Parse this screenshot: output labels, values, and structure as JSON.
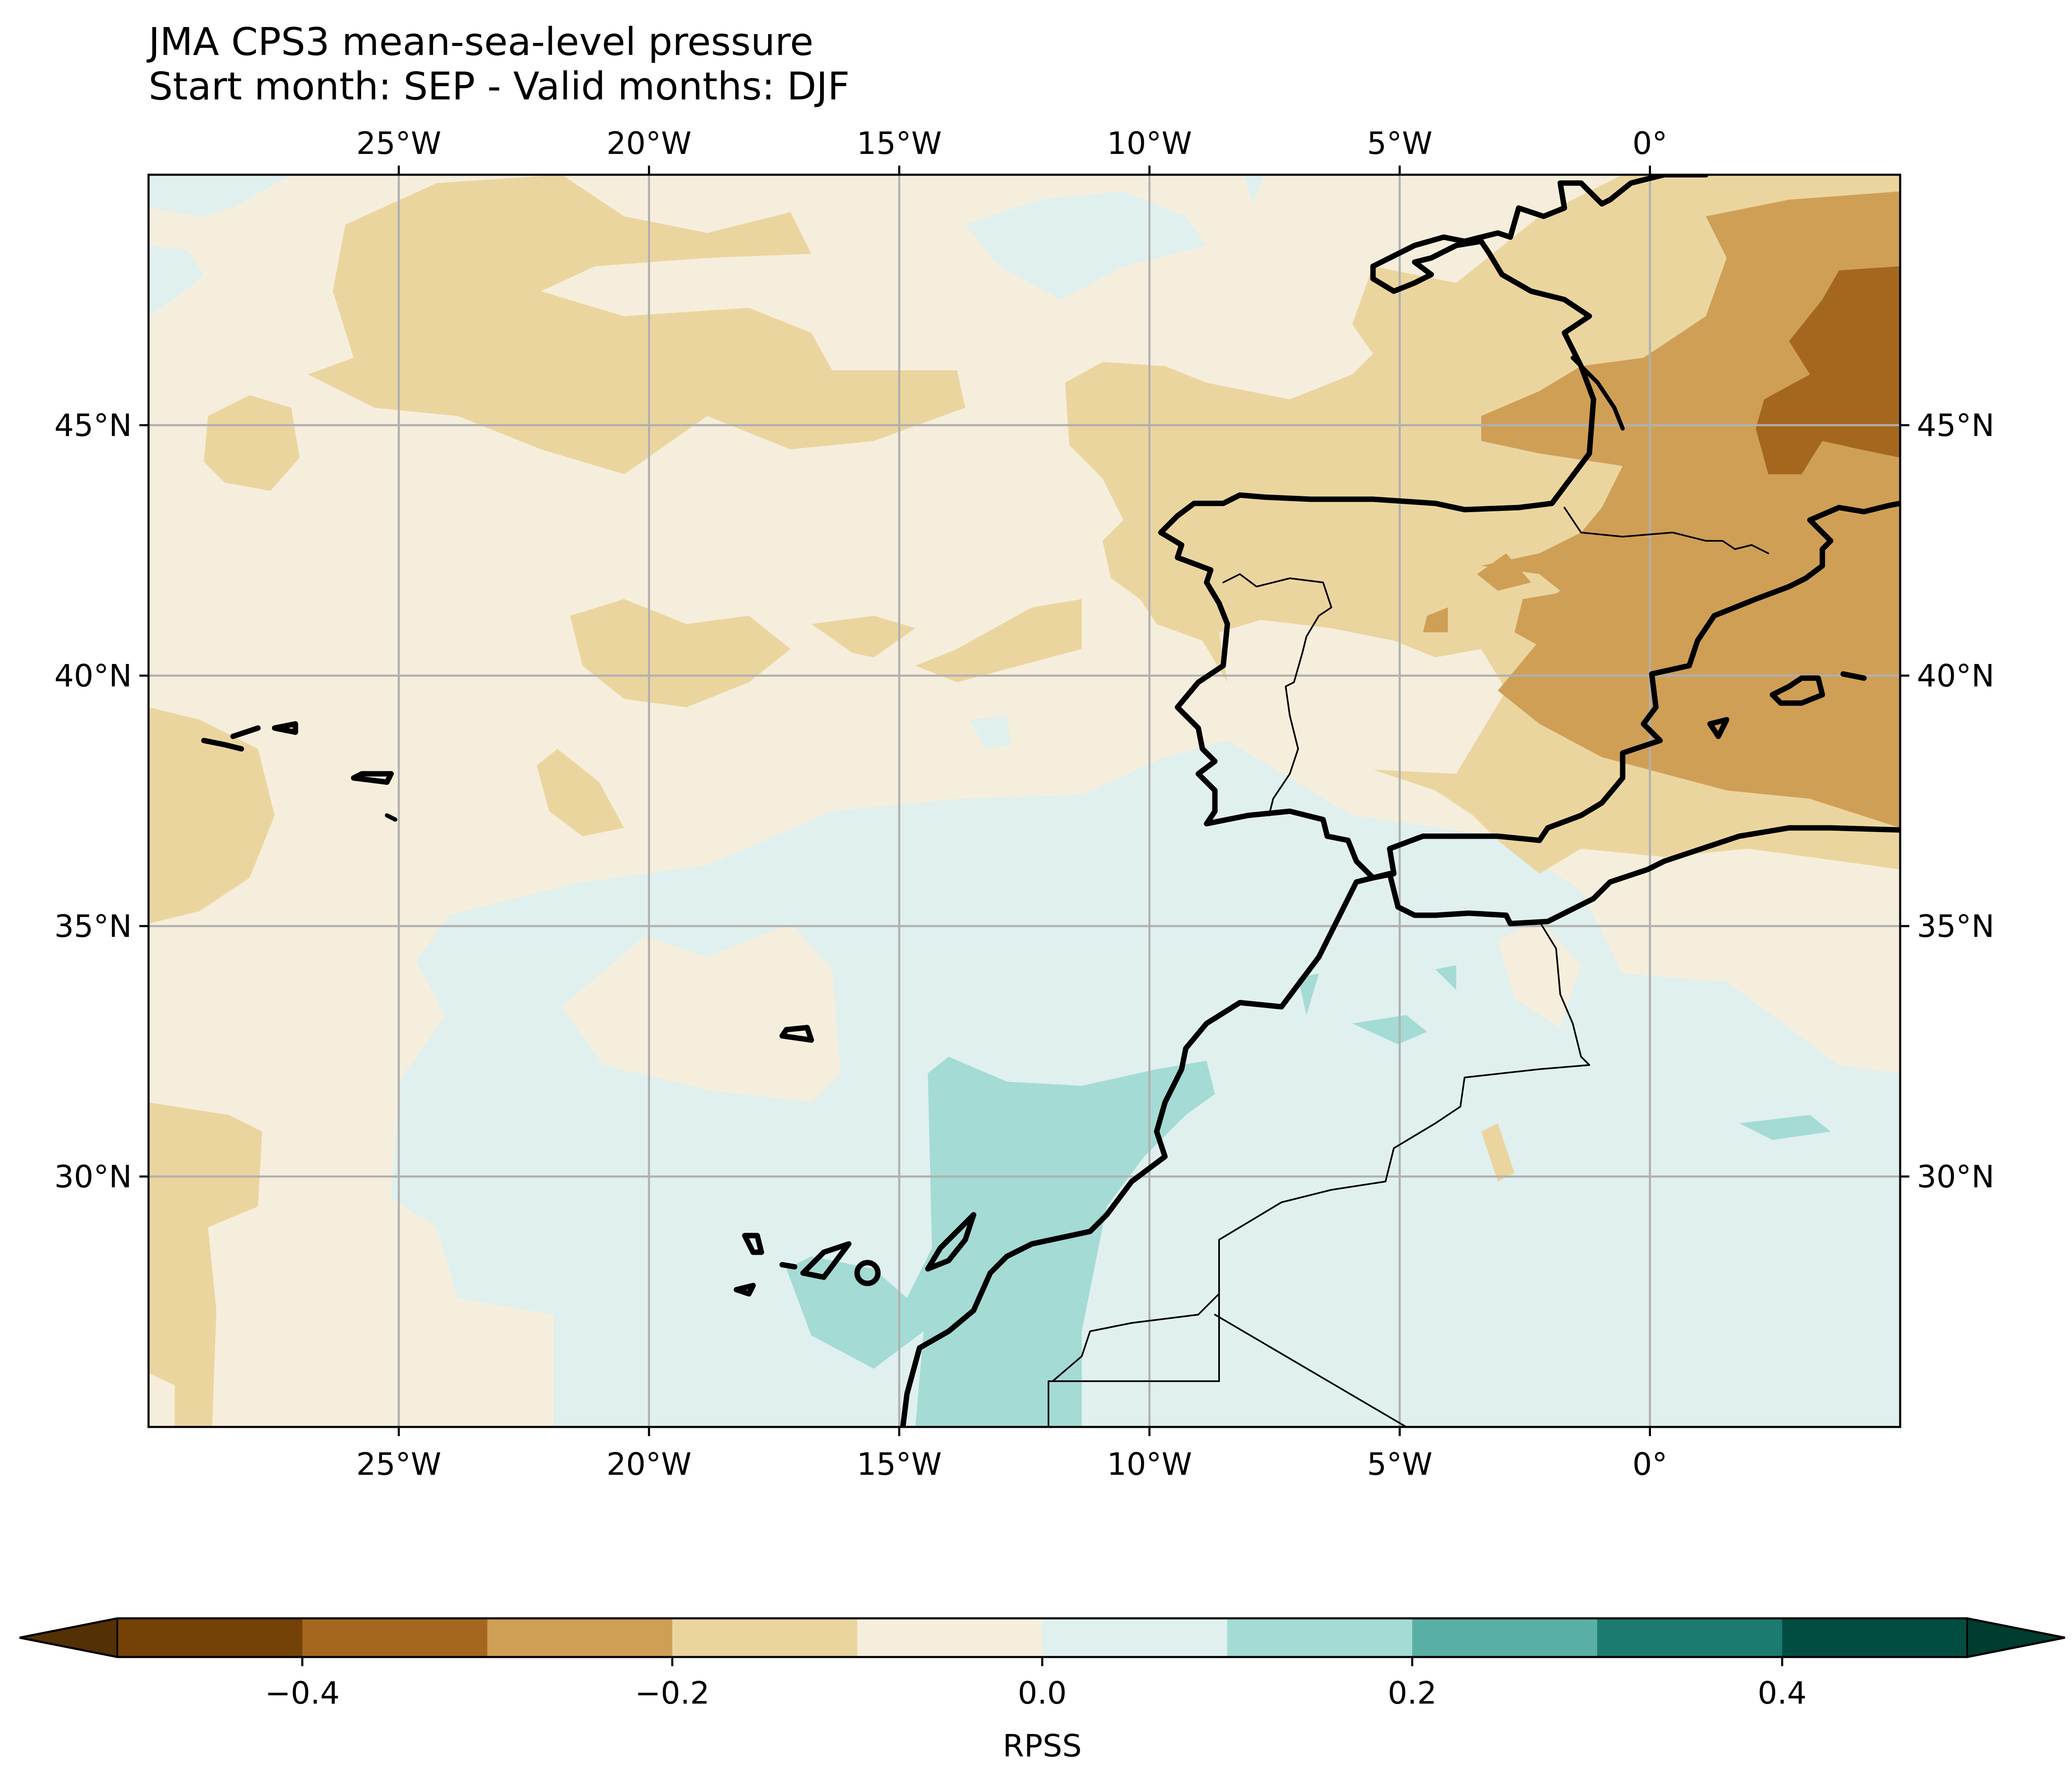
{
  "title": "JMA CPS3 mean-sea-level pressure",
  "subtitle": "Start month: SEP - Valid months: DJF",
  "map": {
    "extent": {
      "lon": [
        -30,
        5
      ],
      "lat": [
        25,
        50
      ]
    },
    "lon_ticks": [
      {
        "value": -25,
        "label": "25°W"
      },
      {
        "value": -20,
        "label": "20°W"
      },
      {
        "value": -15,
        "label": "15°W"
      },
      {
        "value": -10,
        "label": "10°W"
      },
      {
        "value": -5,
        "label": "5°W"
      },
      {
        "value": 0,
        "label": "0°"
      }
    ],
    "lat_ticks": [
      {
        "value": 45,
        "label": "45°N"
      },
      {
        "value": 40,
        "label": "40°N"
      },
      {
        "value": 35,
        "label": "35°N"
      },
      {
        "value": 30,
        "label": "30°N"
      }
    ],
    "gridlines": true,
    "field": "RPSS"
  },
  "colorbar": {
    "label": "RPSS",
    "orientation": "horizontal",
    "extend": "both",
    "boundaries": [
      -0.5,
      -0.4,
      -0.3,
      -0.2,
      -0.1,
      0.0,
      0.1,
      0.2,
      0.3,
      0.4,
      0.5
    ],
    "colors": [
      "#744107",
      "#a5671e",
      "#cf9f56",
      "#ebd59f",
      "#f6eedc",
      "#dff0ef",
      "#a4dbd4",
      "#5aafa5",
      "#1b7b71",
      "#024d41"
    ],
    "under_color": "#543005",
    "over_color": "#003c30",
    "ticks": [
      {
        "value": -0.4,
        "label": "−0.4"
      },
      {
        "value": -0.2,
        "label": "−0.2"
      },
      {
        "value": 0.0,
        "label": "0.0"
      },
      {
        "value": 0.2,
        "label": "0.2"
      },
      {
        "value": 0.4,
        "label": "0.4"
      }
    ]
  },
  "palette": {
    "c1": "#744107",
    "c2": "#a5671e",
    "c3": "#cf9f56",
    "c4": "#ebd59f",
    "c5": "#f6eedc",
    "c6": "#dff0ef",
    "c7": "#a4dbd4",
    "c8": "#5aafa5",
    "grid": "#b0b0b0",
    "coast": "#000000"
  }
}
